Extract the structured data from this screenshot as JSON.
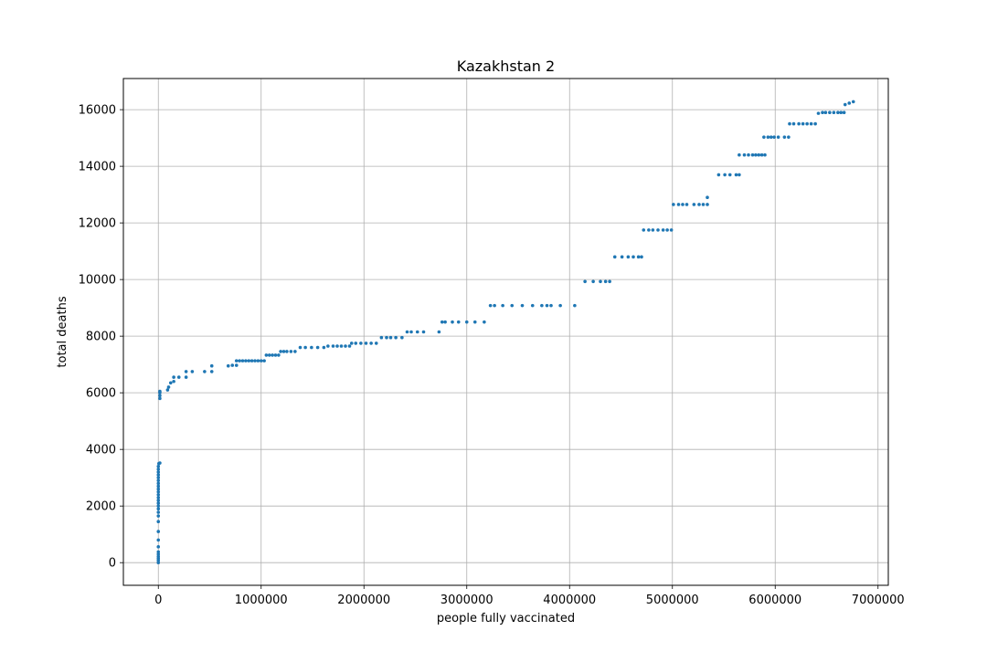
{
  "chart_data": {
    "type": "scatter",
    "title": "Kazakhstan 2",
    "xlabel": "people fully vaccinated",
    "ylabel": "total deaths",
    "xlim": [
      -340000,
      7100000
    ],
    "ylim": [
      -800,
      17100
    ],
    "xticks": [
      0,
      1000000,
      2000000,
      3000000,
      4000000,
      5000000,
      6000000,
      7000000
    ],
    "xtick_labels": [
      "0",
      "1000000",
      "2000000",
      "3000000",
      "4000000",
      "5000000",
      "6000000",
      "7000000"
    ],
    "yticks": [
      0,
      2000,
      4000,
      6000,
      8000,
      10000,
      12000,
      14000,
      16000
    ],
    "ytick_labels": [
      "0",
      "2000",
      "4000",
      "6000",
      "8000",
      "10000",
      "12000",
      "14000",
      "16000"
    ],
    "grid": true,
    "marker_color": "#1f77b4",
    "points": [
      [
        0,
        0
      ],
      [
        0,
        80
      ],
      [
        0,
        150
      ],
      [
        0,
        220
      ],
      [
        0,
        300
      ],
      [
        0,
        380
      ],
      [
        0,
        560
      ],
      [
        0,
        800
      ],
      [
        0,
        1100
      ],
      [
        0,
        1450
      ],
      [
        0,
        1650
      ],
      [
        0,
        1780
      ],
      [
        0,
        1900
      ],
      [
        0,
        2000
      ],
      [
        0,
        2100
      ],
      [
        0,
        2200
      ],
      [
        0,
        2300
      ],
      [
        0,
        2400
      ],
      [
        0,
        2500
      ],
      [
        0,
        2600
      ],
      [
        0,
        2700
      ],
      [
        0,
        2800
      ],
      [
        0,
        2900
      ],
      [
        0,
        3000
      ],
      [
        0,
        3100
      ],
      [
        0,
        3200
      ],
      [
        0,
        3300
      ],
      [
        0,
        3400
      ],
      [
        5000,
        3500
      ],
      [
        15000,
        3520
      ],
      [
        15000,
        5800
      ],
      [
        15000,
        5900
      ],
      [
        15000,
        6000
      ],
      [
        15000,
        6050
      ],
      [
        90000,
        6100
      ],
      [
        100000,
        6200
      ],
      [
        120000,
        6350
      ],
      [
        150000,
        6400
      ],
      [
        150000,
        6550
      ],
      [
        200000,
        6550
      ],
      [
        270000,
        6550
      ],
      [
        270000,
        6750
      ],
      [
        330000,
        6750
      ],
      [
        450000,
        6750
      ],
      [
        520000,
        6750
      ],
      [
        520000,
        6950
      ],
      [
        680000,
        6950
      ],
      [
        720000,
        6970
      ],
      [
        760000,
        6970
      ],
      [
        760000,
        7130
      ],
      [
        790000,
        7130
      ],
      [
        820000,
        7130
      ],
      [
        850000,
        7130
      ],
      [
        880000,
        7130
      ],
      [
        910000,
        7130
      ],
      [
        940000,
        7130
      ],
      [
        970000,
        7130
      ],
      [
        1000000,
        7130
      ],
      [
        1030000,
        7130
      ],
      [
        1050000,
        7330
      ],
      [
        1080000,
        7330
      ],
      [
        1110000,
        7330
      ],
      [
        1140000,
        7330
      ],
      [
        1170000,
        7330
      ],
      [
        1190000,
        7460
      ],
      [
        1220000,
        7460
      ],
      [
        1250000,
        7460
      ],
      [
        1290000,
        7460
      ],
      [
        1330000,
        7460
      ],
      [
        1380000,
        7600
      ],
      [
        1430000,
        7600
      ],
      [
        1490000,
        7600
      ],
      [
        1550000,
        7600
      ],
      [
        1610000,
        7600
      ],
      [
        1650000,
        7650
      ],
      [
        1700000,
        7650
      ],
      [
        1740000,
        7650
      ],
      [
        1780000,
        7650
      ],
      [
        1820000,
        7650
      ],
      [
        1860000,
        7650
      ],
      [
        1880000,
        7750
      ],
      [
        1920000,
        7750
      ],
      [
        1970000,
        7750
      ],
      [
        2020000,
        7750
      ],
      [
        2070000,
        7750
      ],
      [
        2120000,
        7750
      ],
      [
        2170000,
        7950
      ],
      [
        2220000,
        7950
      ],
      [
        2260000,
        7950
      ],
      [
        2310000,
        7950
      ],
      [
        2370000,
        7950
      ],
      [
        2420000,
        8150
      ],
      [
        2460000,
        8150
      ],
      [
        2520000,
        8150
      ],
      [
        2580000,
        8150
      ],
      [
        2730000,
        8150
      ],
      [
        2760000,
        8500
      ],
      [
        2790000,
        8500
      ],
      [
        2860000,
        8500
      ],
      [
        2920000,
        8500
      ],
      [
        3000000,
        8500
      ],
      [
        3080000,
        8500
      ],
      [
        3170000,
        8500
      ],
      [
        3230000,
        9080
      ],
      [
        3270000,
        9080
      ],
      [
        3350000,
        9080
      ],
      [
        3440000,
        9080
      ],
      [
        3540000,
        9080
      ],
      [
        3640000,
        9080
      ],
      [
        3730000,
        9080
      ],
      [
        3780000,
        9080
      ],
      [
        3820000,
        9080
      ],
      [
        3910000,
        9080
      ],
      [
        4050000,
        9080
      ],
      [
        4150000,
        9930
      ],
      [
        4230000,
        9930
      ],
      [
        4300000,
        9930
      ],
      [
        4350000,
        9930
      ],
      [
        4390000,
        9930
      ],
      [
        4440000,
        10800
      ],
      [
        4510000,
        10800
      ],
      [
        4570000,
        10800
      ],
      [
        4620000,
        10800
      ],
      [
        4670000,
        10800
      ],
      [
        4700000,
        10800
      ],
      [
        4720000,
        11750
      ],
      [
        4770000,
        11750
      ],
      [
        4810000,
        11750
      ],
      [
        4860000,
        11750
      ],
      [
        4910000,
        11750
      ],
      [
        4950000,
        11750
      ],
      [
        4990000,
        11750
      ],
      [
        5010000,
        12650
      ],
      [
        5060000,
        12650
      ],
      [
        5100000,
        12650
      ],
      [
        5140000,
        12650
      ],
      [
        5210000,
        12650
      ],
      [
        5260000,
        12650
      ],
      [
        5300000,
        12650
      ],
      [
        5340000,
        12650
      ],
      [
        5340000,
        12900
      ],
      [
        5450000,
        13700
      ],
      [
        5510000,
        13700
      ],
      [
        5560000,
        13700
      ],
      [
        5620000,
        13700
      ],
      [
        5650000,
        13700
      ],
      [
        5650000,
        14400
      ],
      [
        5700000,
        14400
      ],
      [
        5740000,
        14400
      ],
      [
        5780000,
        14400
      ],
      [
        5810000,
        14400
      ],
      [
        5840000,
        14400
      ],
      [
        5870000,
        14400
      ],
      [
        5900000,
        14400
      ],
      [
        5890000,
        15030
      ],
      [
        5930000,
        15030
      ],
      [
        5960000,
        15030
      ],
      [
        5990000,
        15030
      ],
      [
        6030000,
        15030
      ],
      [
        6090000,
        15030
      ],
      [
        6130000,
        15030
      ],
      [
        6140000,
        15500
      ],
      [
        6180000,
        15500
      ],
      [
        6230000,
        15500
      ],
      [
        6270000,
        15500
      ],
      [
        6310000,
        15500
      ],
      [
        6350000,
        15500
      ],
      [
        6390000,
        15500
      ],
      [
        6420000,
        15870
      ],
      [
        6460000,
        15900
      ],
      [
        6490000,
        15900
      ],
      [
        6530000,
        15900
      ],
      [
        6570000,
        15900
      ],
      [
        6610000,
        15900
      ],
      [
        6640000,
        15900
      ],
      [
        6670000,
        15900
      ],
      [
        6680000,
        16180
      ],
      [
        6720000,
        16230
      ],
      [
        6760000,
        16280
      ]
    ]
  }
}
